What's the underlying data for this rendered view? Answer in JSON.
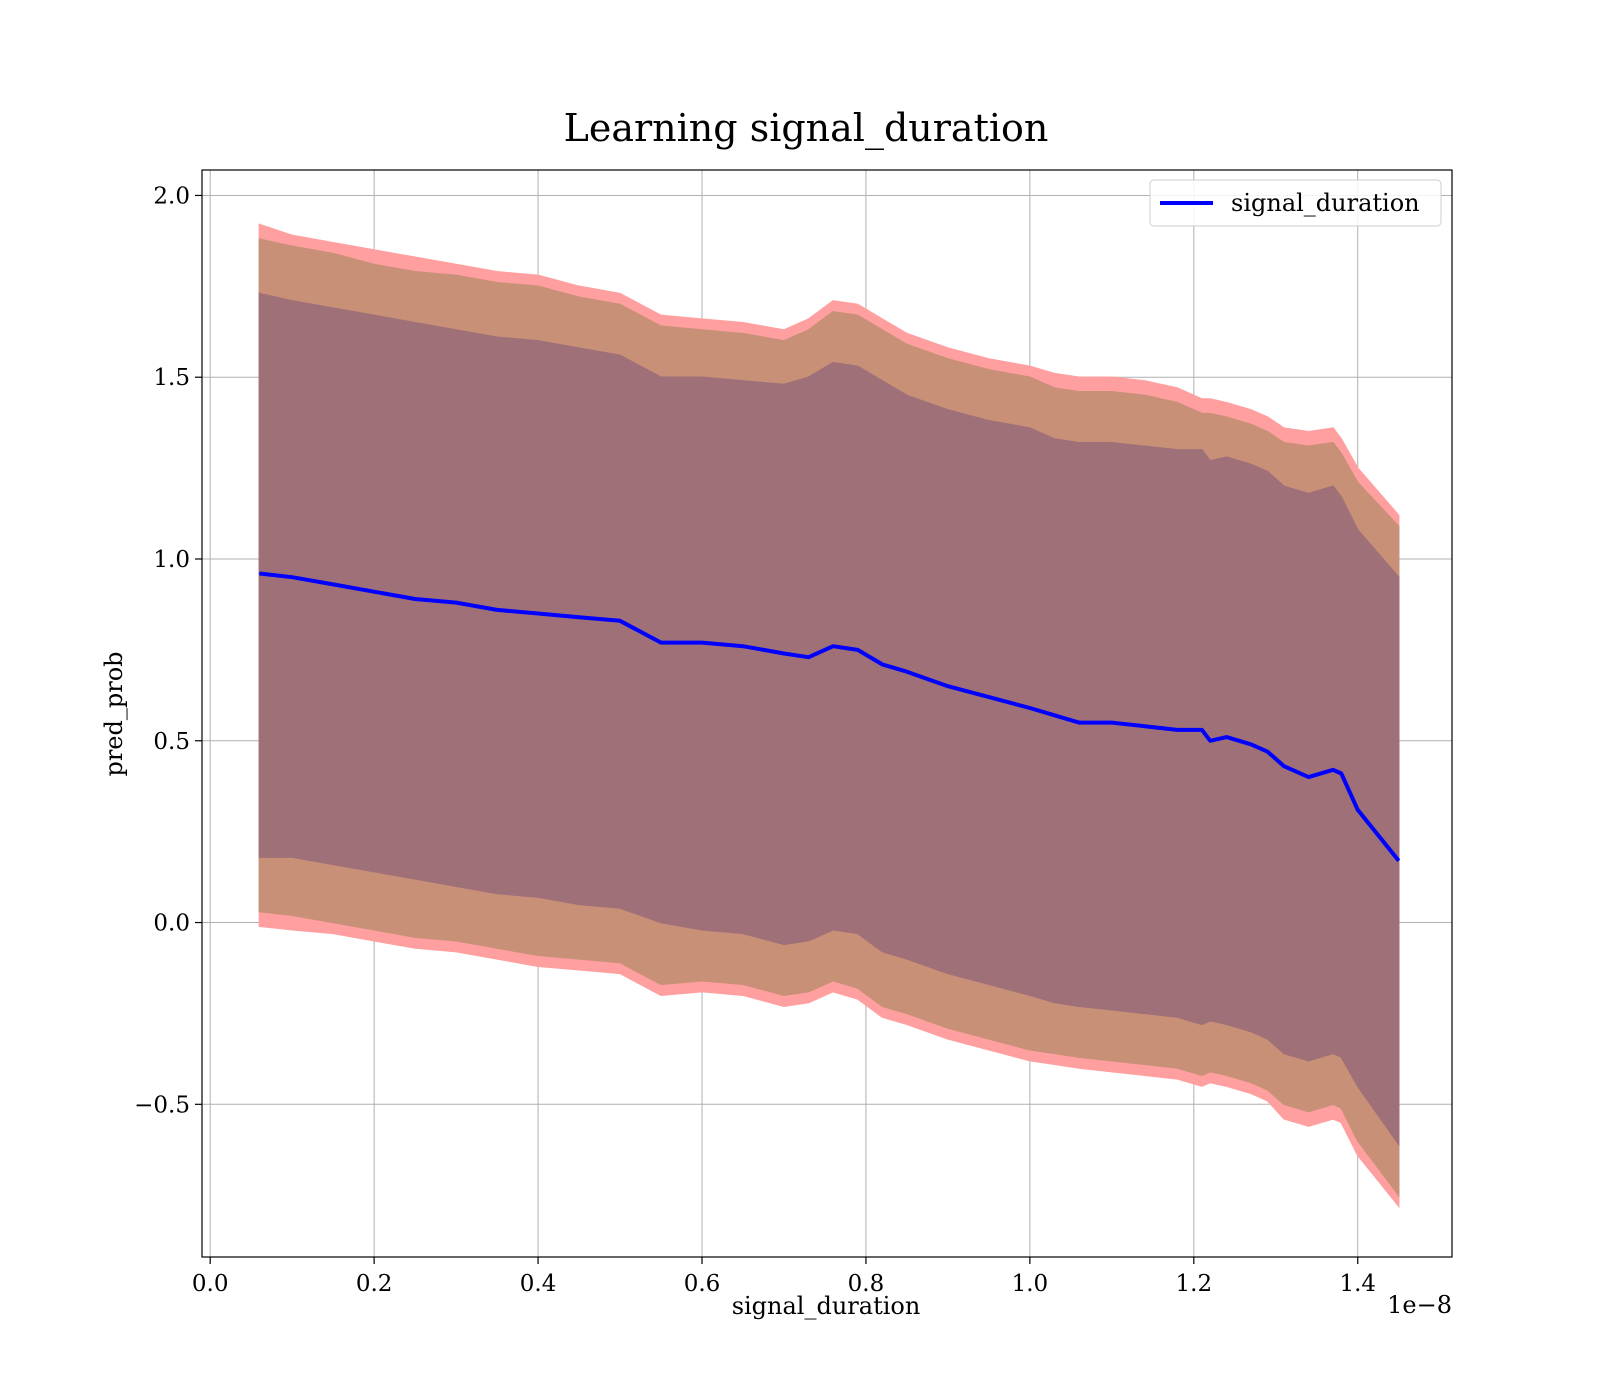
{
  "chart_data": {
    "type": "line",
    "title": "Learning signal_duration",
    "xlabel": "signal_duration",
    "ylabel": "pred_prob",
    "x_offset_label": "1e−8",
    "xlim": [
      -0.01,
      1.515
    ],
    "ylim": [
      -0.92,
      2.07
    ],
    "grid": true,
    "legend": {
      "position": "top-right",
      "entries": [
        "signal_duration"
      ]
    },
    "x_ticks": [
      0.0,
      0.2,
      0.4,
      0.6,
      0.8,
      1.0,
      1.2,
      1.4
    ],
    "x_tick_labels": [
      "0.0",
      "0.2",
      "0.4",
      "0.6",
      "0.8",
      "1.0",
      "1.2",
      "1.4"
    ],
    "y_ticks": [
      -0.5,
      0.0,
      0.5,
      1.0,
      1.5,
      2.0
    ],
    "y_tick_labels": [
      "−0.5",
      "0.0",
      "0.5",
      "1.0",
      "1.5",
      "2.0"
    ],
    "x_unit_scale": "1e-8",
    "x": [
      0.06,
      0.1,
      0.15,
      0.2,
      0.25,
      0.3,
      0.35,
      0.4,
      0.45,
      0.5,
      0.55,
      0.6,
      0.65,
      0.7,
      0.73,
      0.76,
      0.79,
      0.82,
      0.85,
      0.9,
      0.95,
      1.0,
      1.03,
      1.06,
      1.1,
      1.14,
      1.18,
      1.21,
      1.22,
      1.24,
      1.27,
      1.29,
      1.31,
      1.34,
      1.37,
      1.38,
      1.4,
      1.45
    ],
    "series": [
      {
        "name": "signal_duration",
        "color": "#0000ff",
        "values": [
          0.96,
          0.95,
          0.93,
          0.91,
          0.89,
          0.88,
          0.86,
          0.85,
          0.84,
          0.83,
          0.77,
          0.77,
          0.76,
          0.74,
          0.73,
          0.76,
          0.75,
          0.71,
          0.69,
          0.65,
          0.62,
          0.59,
          0.57,
          0.55,
          0.55,
          0.54,
          0.53,
          0.53,
          0.5,
          0.51,
          0.49,
          0.47,
          0.43,
          0.4,
          0.42,
          0.41,
          0.31,
          0.17
        ]
      }
    ],
    "bands": [
      {
        "color": "#ff9f9f",
        "upper": [
          1.92,
          1.89,
          1.87,
          1.85,
          1.83,
          1.81,
          1.79,
          1.78,
          1.75,
          1.73,
          1.67,
          1.66,
          1.65,
          1.63,
          1.66,
          1.71,
          1.7,
          1.66,
          1.62,
          1.58,
          1.55,
          1.53,
          1.51,
          1.5,
          1.5,
          1.49,
          1.47,
          1.44,
          1.44,
          1.43,
          1.41,
          1.39,
          1.36,
          1.35,
          1.36,
          1.33,
          1.25,
          1.12
        ],
        "lower": [
          -0.01,
          -0.02,
          -0.03,
          -0.05,
          -0.07,
          -0.08,
          -0.1,
          -0.12,
          -0.13,
          -0.14,
          -0.2,
          -0.19,
          -0.2,
          -0.23,
          -0.22,
          -0.19,
          -0.21,
          -0.26,
          -0.28,
          -0.32,
          -0.35,
          -0.38,
          -0.39,
          -0.4,
          -0.41,
          -0.42,
          -0.43,
          -0.45,
          -0.44,
          -0.45,
          -0.47,
          -0.49,
          -0.54,
          -0.56,
          -0.54,
          -0.55,
          -0.64,
          -0.78
        ]
      },
      {
        "color": "#c99078",
        "upper": [
          1.88,
          1.86,
          1.84,
          1.81,
          1.79,
          1.78,
          1.76,
          1.75,
          1.72,
          1.7,
          1.64,
          1.63,
          1.62,
          1.6,
          1.63,
          1.68,
          1.67,
          1.63,
          1.59,
          1.55,
          1.52,
          1.5,
          1.47,
          1.46,
          1.46,
          1.45,
          1.43,
          1.4,
          1.4,
          1.39,
          1.37,
          1.35,
          1.32,
          1.31,
          1.32,
          1.29,
          1.21,
          1.09
        ],
        "lower": [
          0.03,
          0.02,
          0.0,
          -0.02,
          -0.04,
          -0.05,
          -0.07,
          -0.09,
          -0.1,
          -0.11,
          -0.17,
          -0.16,
          -0.17,
          -0.2,
          -0.19,
          -0.16,
          -0.18,
          -0.23,
          -0.25,
          -0.29,
          -0.32,
          -0.35,
          -0.36,
          -0.37,
          -0.38,
          -0.39,
          -0.4,
          -0.42,
          -0.41,
          -0.42,
          -0.44,
          -0.46,
          -0.5,
          -0.52,
          -0.5,
          -0.51,
          -0.6,
          -0.75
        ]
      },
      {
        "color": "#a07078",
        "upper": [
          1.73,
          1.71,
          1.69,
          1.67,
          1.65,
          1.63,
          1.61,
          1.6,
          1.58,
          1.56,
          1.5,
          1.5,
          1.49,
          1.48,
          1.5,
          1.54,
          1.53,
          1.49,
          1.45,
          1.41,
          1.38,
          1.36,
          1.33,
          1.32,
          1.32,
          1.31,
          1.3,
          1.3,
          1.27,
          1.28,
          1.26,
          1.24,
          1.2,
          1.18,
          1.2,
          1.17,
          1.08,
          0.95
        ],
        "lower": [
          0.18,
          0.18,
          0.16,
          0.14,
          0.12,
          0.1,
          0.08,
          0.07,
          0.05,
          0.04,
          0.0,
          -0.02,
          -0.03,
          -0.06,
          -0.05,
          -0.02,
          -0.03,
          -0.08,
          -0.1,
          -0.14,
          -0.17,
          -0.2,
          -0.22,
          -0.23,
          -0.24,
          -0.25,
          -0.26,
          -0.28,
          -0.27,
          -0.28,
          -0.3,
          -0.32,
          -0.36,
          -0.38,
          -0.36,
          -0.37,
          -0.45,
          -0.61
        ]
      }
    ]
  }
}
